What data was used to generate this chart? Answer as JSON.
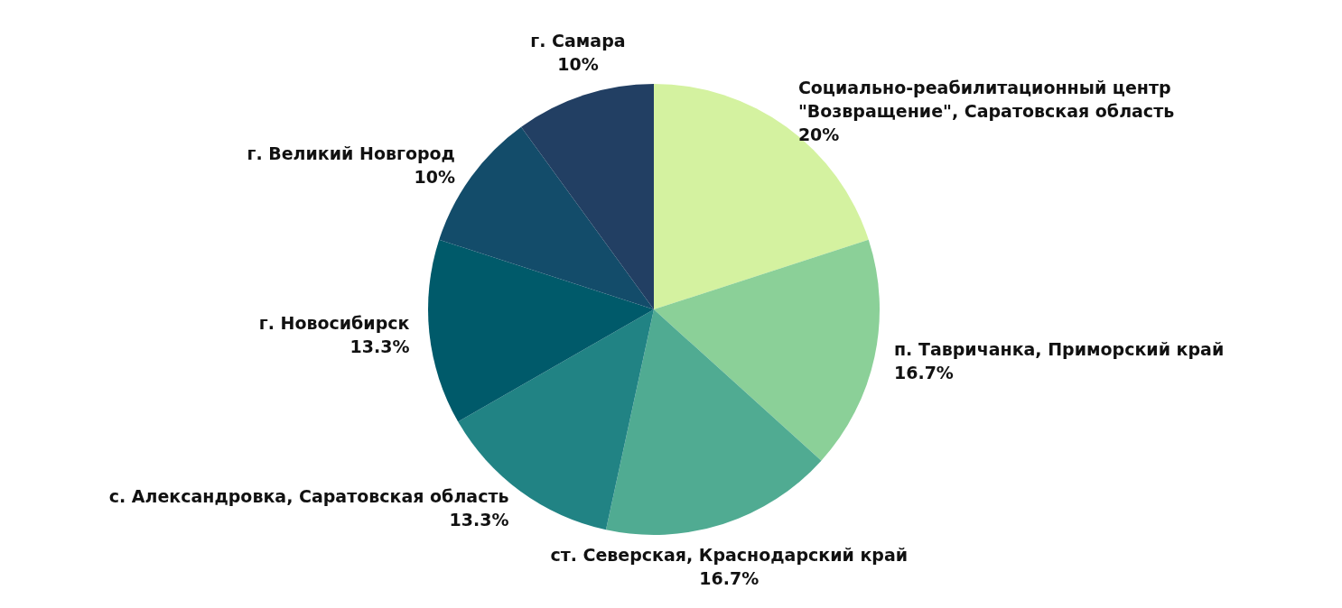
{
  "chart_data": {
    "type": "pie",
    "categories": [
      "Социально-реабилитационный центр \"Возвращение\", Саратовская область",
      "п. Тавричанка, Приморский край",
      "ст. Северская, Краснодарский край",
      "с. Александровка, Саратовская область",
      "г. Новосибирск",
      "г. Великий Новгород",
      "г. Самара"
    ],
    "values": [
      20,
      16.7,
      16.7,
      13.3,
      13.3,
      10,
      10
    ],
    "value_labels": [
      "20%",
      "16.7%",
      "16.7%",
      "13.3%",
      "13.3%",
      "10%",
      "10%"
    ],
    "colors": [
      "#d4f2a0",
      "#8bd098",
      "#50ab92",
      "#218384",
      "#005a6a",
      "#134c6a",
      "#223f63"
    ]
  }
}
